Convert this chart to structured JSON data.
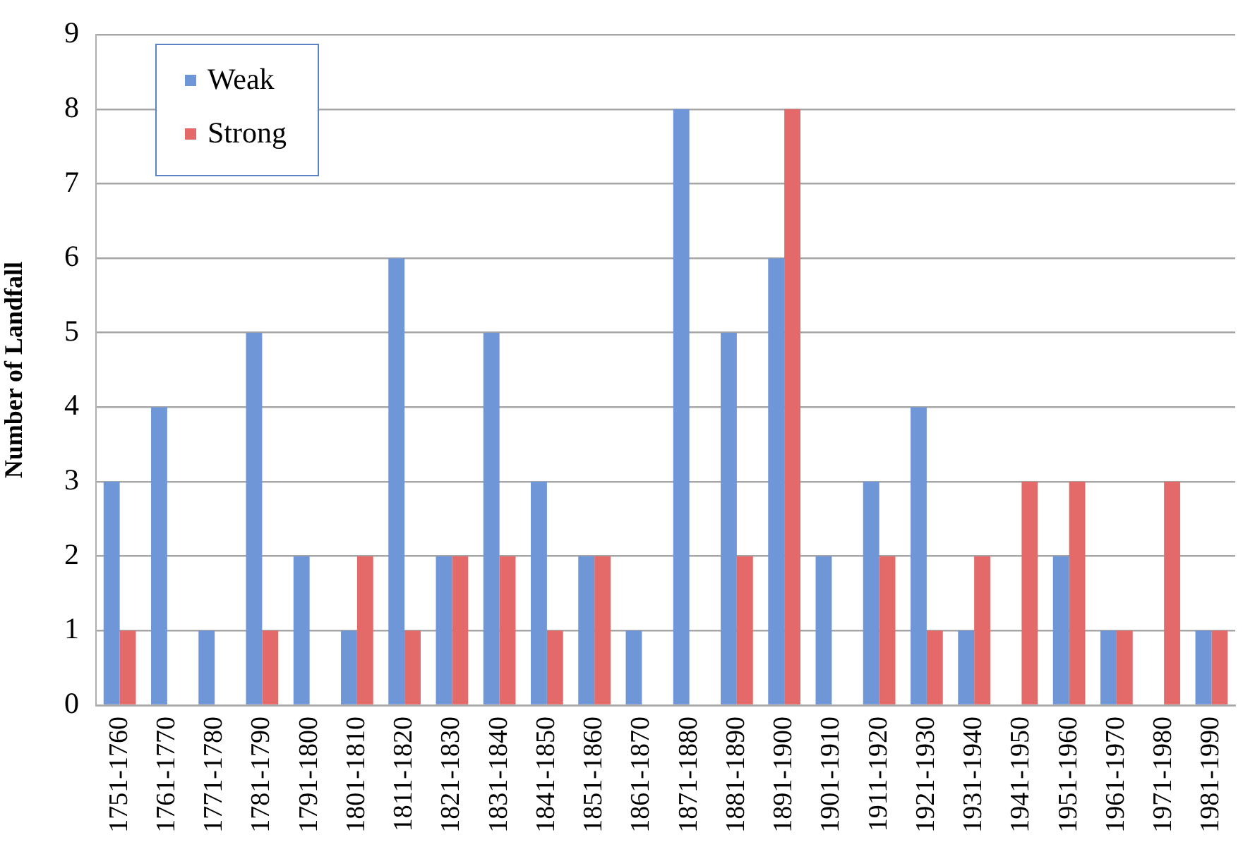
{
  "chart_data": {
    "type": "bar",
    "ylabel": "Number of Landfall",
    "categories": [
      "1751-1760",
      "1761-1770",
      "1771-1780",
      "1781-1790",
      "1791-1800",
      "1801-1810",
      "1811-1820",
      "1821-1830",
      "1831-1840",
      "1841-1850",
      "1851-1860",
      "1861-1870",
      "1871-1880",
      "1881-1890",
      "1891-1900",
      "1901-1910",
      "1911-1920",
      "1921-1930",
      "1931-1940",
      "1941-1950",
      "1951-1960",
      "1961-1970",
      "1971-1980",
      "1981-1990"
    ],
    "series": [
      {
        "name": "Weak",
        "color": "#6f96d6",
        "values": [
          3,
          4,
          1,
          5,
          2,
          1,
          6,
          2,
          5,
          3,
          2,
          1,
          8,
          5,
          6,
          2,
          3,
          4,
          1,
          0,
          2,
          1,
          0,
          1
        ]
      },
      {
        "name": "Strong",
        "color": "#e46a6a",
        "values": [
          1,
          0,
          0,
          1,
          0,
          2,
          1,
          2,
          2,
          1,
          2,
          0,
          0,
          2,
          8,
          0,
          2,
          1,
          2,
          3,
          3,
          1,
          3,
          1
        ]
      }
    ],
    "ylim": [
      0,
      9
    ],
    "yticks": [
      0,
      1,
      2,
      3,
      4,
      5,
      6,
      7,
      8,
      9
    ],
    "grid": "y",
    "legend": "top left"
  }
}
